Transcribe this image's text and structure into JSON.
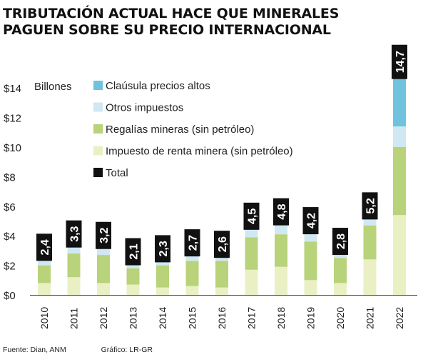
{
  "title": {
    "line1": "TRIBUTACIÓN ACTUAL HACE QUE MINERALES",
    "line2": "PAGUEN SOBRE SU PRECIO INTERNACIONAL"
  },
  "footer": {
    "source": "Fuente: Dian, ANM",
    "credit": "Gráfico: LR-GR"
  },
  "chart_data": {
    "type": "bar",
    "stacked": true,
    "ylabel": "Billones",
    "ylim": [
      0,
      15.5
    ],
    "yticks": [
      0,
      2,
      4,
      6,
      8,
      10,
      12,
      14
    ],
    "ytick_labels": [
      "$0",
      "$2",
      "$4",
      "$6",
      "$8",
      "$10",
      "$12",
      "$14"
    ],
    "grid": false,
    "legend_position": "top-left",
    "categories": [
      "2010",
      "2011",
      "2012",
      "2013",
      "2014",
      "2015",
      "2016",
      "2017",
      "2018",
      "2019",
      "2020",
      "2021",
      "2022"
    ],
    "series": [
      {
        "name": "Impuesto de renta minera (sin petróleo)",
        "color": "#eaf0c4",
        "values": [
          0.8,
          1.2,
          0.8,
          0.7,
          0.5,
          0.6,
          0.5,
          1.7,
          1.9,
          1.0,
          0.8,
          2.4,
          5.4
        ]
      },
      {
        "name": "Regalías mineras (sin petróleo)",
        "color": "#b8d37a",
        "values": [
          1.2,
          1.6,
          1.9,
          1.1,
          1.5,
          1.7,
          1.8,
          2.2,
          2.2,
          2.6,
          1.7,
          2.3,
          4.6
        ]
      },
      {
        "name": "Otros impuestos",
        "color": "#cfe8f2",
        "values": [
          0.4,
          0.5,
          0.5,
          0.3,
          0.3,
          0.4,
          0.3,
          0.6,
          0.7,
          0.6,
          0.3,
          0.5,
          1.4
        ]
      },
      {
        "name": "Claúsula precios altos",
        "color": "#6fc3dc",
        "values": [
          0,
          0,
          0,
          0,
          0,
          0,
          0,
          0,
          0,
          0,
          0,
          0,
          3.3
        ]
      }
    ],
    "totals": {
      "name": "Total",
      "color": "#111111",
      "labels": [
        "2,4",
        "3,3",
        "3,2",
        "2,1",
        "2,3",
        "2,7",
        "2,6",
        "4,5",
        "4,8",
        "4,2",
        "2,8",
        "5,2",
        "14,7"
      ]
    },
    "legend": [
      {
        "label": "Claúsula precios altos",
        "color": "#6fc3dc"
      },
      {
        "label": "Otros impuestos",
        "color": "#cfe8f2"
      },
      {
        "label": "Regalías mineras (sin petróleo)",
        "color": "#b8d37a"
      },
      {
        "label": "Impuesto de renta minera (sin petróleo)",
        "color": "#eaf0c4"
      },
      {
        "label": "Total",
        "color": "#111111"
      }
    ]
  }
}
